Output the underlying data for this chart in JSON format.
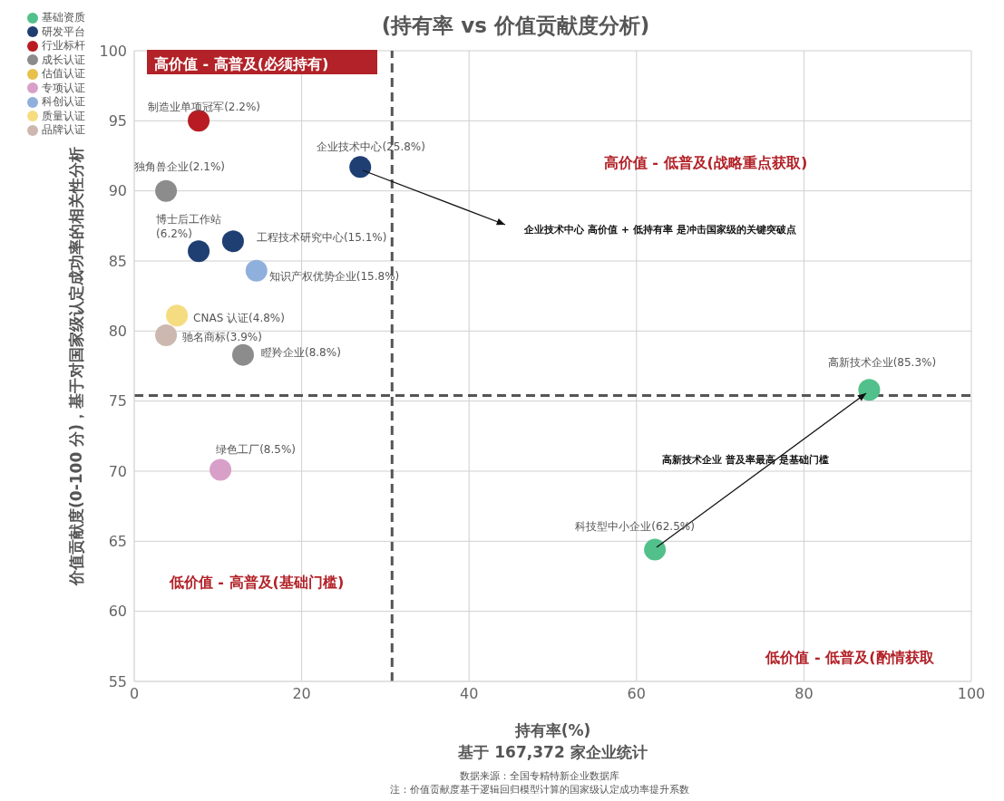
{
  "chart_data": {
    "type": "scatter",
    "title": "(持有率 vs 价值贡献度分析)",
    "xlabel": "持有率(%)\n基于 167,372 家企业统计",
    "ylabel": "价值贡献度(0-100 分)，基于对国家级认定成功率的相关性分析",
    "xlim": [
      0,
      100
    ],
    "xticks": [
      0,
      20,
      40,
      60,
      80,
      100
    ],
    "ylim": [
      55,
      100
    ],
    "yticks": [
      55,
      60,
      65,
      70,
      75,
      80,
      85,
      90,
      95,
      100
    ],
    "grid": true,
    "legend": "top left",
    "marker": "circle",
    "ref_lines": [
      {
        "axis": "x",
        "value": 30.8,
        "color": "#555555",
        "line_style": "dashed"
      },
      {
        "axis": "y",
        "value": 75.4,
        "color": "#555555",
        "line_style": "dashed"
      }
    ],
    "series": [
      {
        "name": "基础资质",
        "color": "#52c08a",
        "x": [
          87.8,
          62.2
        ],
        "values": [
          75.8,
          64.4
        ]
      },
      {
        "name": "研发平台",
        "color": "#1f3f73",
        "x": [
          27.0,
          7.7,
          11.8
        ],
        "values": [
          91.7,
          85.7,
          86.4
        ]
      },
      {
        "name": "行业标杆",
        "color": "#b81c22",
        "x": [
          7.7
        ],
        "values": [
          95.0
        ]
      },
      {
        "name": "成长认证",
        "color": "#8c8c8c",
        "x": [
          3.8,
          13.0
        ],
        "values": [
          90.0,
          78.3
        ]
      },
      {
        "name": "估值认证",
        "color": "#e8c04a"
      },
      {
        "name": "专项认证",
        "color": "#d8a0c8",
        "x": [
          10.3
        ],
        "values": [
          70.1
        ]
      },
      {
        "name": "科创认证",
        "color": "#8fb0dc",
        "x": [
          14.6
        ],
        "values": [
          84.3
        ]
      },
      {
        "name": "质量认证",
        "color": "#f5dc80",
        "x": [
          5.1
        ],
        "values": [
          81.1
        ]
      },
      {
        "name": "品牌认证",
        "color": "#cdb8b0",
        "x": [
          3.8
        ],
        "values": [
          79.7
        ]
      }
    ],
    "annotations": [
      "高价值 - 高普及(必须持有)",
      "高价值 - 低普及(战略重点获取)",
      "低价值 - 高普及(基础门槛)",
      "低价值 - 低普及(酌情获取",
      "企业技术中心 高价值 + 低持有率 是冲击国家级的关键突破点",
      "高新技术企业 普及率最高 是基础门槛",
      "数据来源：全国专精特新企业数据库",
      "注：价值贡献度基于逻辑回归模型计算的国家级认定成功率提升系数",
      {
        "text": "高新技术企业(85.3%)",
        "x": 87.8,
        "y": 75.8
      },
      {
        "text": "科技型中小企业(62.5%)",
        "x": 62.2,
        "y": 64.4
      },
      {
        "text": "企业技术中心(25.8%)",
        "x": 27.0,
        "y": 91.7
      },
      {
        "text": "博士后工作站\n(6.2%)",
        "x": 7.7,
        "y": 85.7
      },
      {
        "text": "工程技术研究中心(15.1%)",
        "x": 11.8,
        "y": 86.4
      },
      {
        "text": "制造业单项冠军(2.2%)",
        "x": 7.7,
        "y": 95.0
      },
      {
        "text": "独角兽企业(2.1%)",
        "x": 3.8,
        "y": 90.0
      },
      {
        "text": "瞪羚企业(8.8%)",
        "x": 13.0,
        "y": 78.3
      },
      {
        "text": "绿色工厂(8.5%)",
        "x": 10.3,
        "y": 70.1
      },
      {
        "text": "知识产权优势企业(15.8%)",
        "x": 14.6,
        "y": 84.3
      },
      {
        "text": "CNAS 认证(4.8%)",
        "x": 5.1,
        "y": 81.1
      },
      {
        "text": "驰名商标(3.9%)",
        "x": 3.8,
        "y": 79.7
      }
    ]
  }
}
